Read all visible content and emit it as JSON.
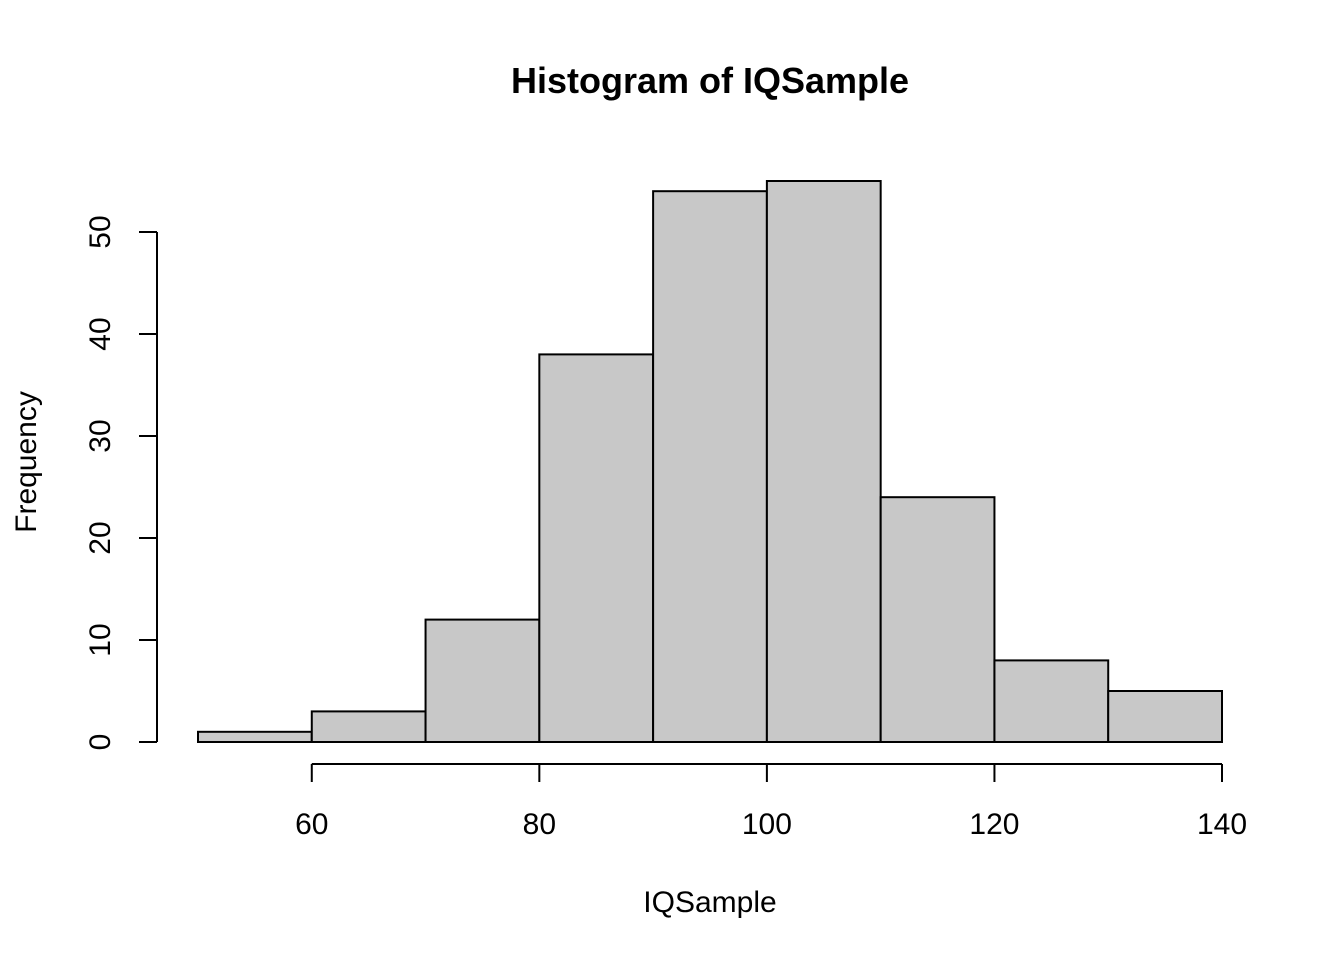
{
  "chart_data": {
    "type": "bar",
    "subtype": "histogram",
    "title": "Histogram of IQSample",
    "xlabel": "IQSample",
    "ylabel": "Frequency",
    "bins": [
      {
        "x0": 50,
        "x1": 60,
        "count": 1
      },
      {
        "x0": 60,
        "x1": 70,
        "count": 3
      },
      {
        "x0": 70,
        "x1": 80,
        "count": 12
      },
      {
        "x0": 80,
        "x1": 90,
        "count": 38
      },
      {
        "x0": 90,
        "x1": 100,
        "count": 54
      },
      {
        "x0": 100,
        "x1": 110,
        "count": 55
      },
      {
        "x0": 110,
        "x1": 120,
        "count": 24
      },
      {
        "x0": 120,
        "x1": 130,
        "count": 8
      },
      {
        "x0": 130,
        "x1": 140,
        "count": 5
      }
    ],
    "x_ticks": [
      60,
      80,
      100,
      120,
      140
    ],
    "y_ticks": [
      0,
      10,
      20,
      30,
      40,
      50
    ],
    "xlim": [
      50,
      140
    ],
    "ylim": [
      0,
      55
    ],
    "grid": false,
    "legend": "none",
    "colors": {
      "bar_fill": "#c8c8c8",
      "bar_stroke": "#000000",
      "axis": "#000000"
    }
  }
}
